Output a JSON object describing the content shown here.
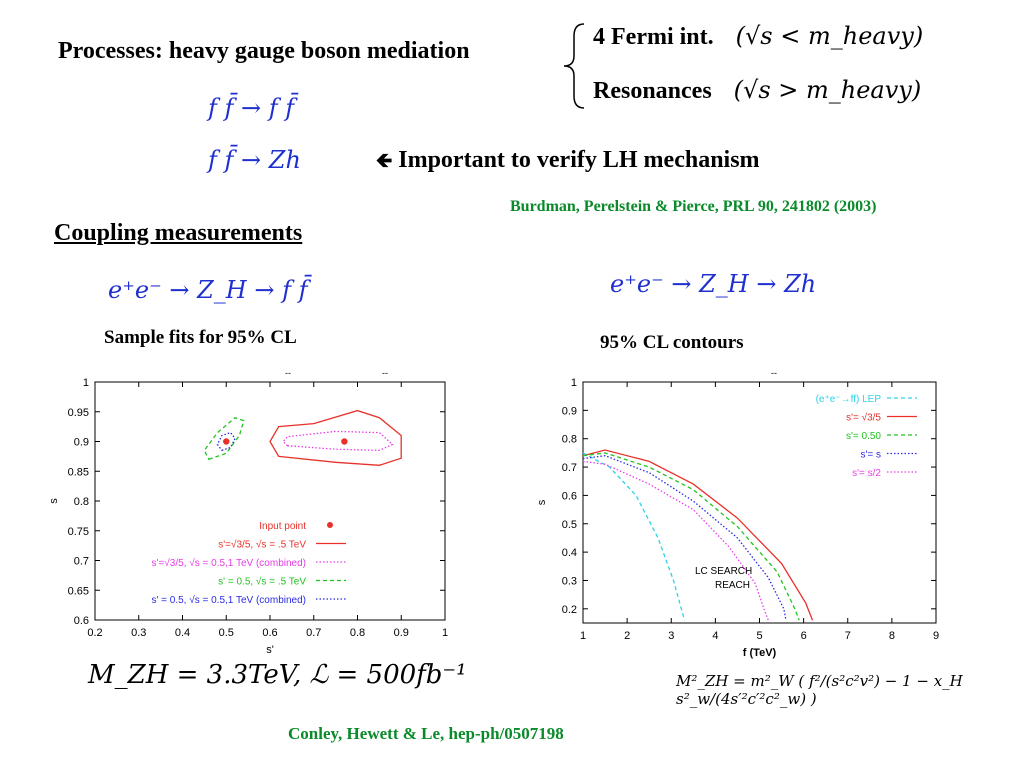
{
  "header": {
    "processes_label": "Processes: heavy gauge boson mediation",
    "bracket_items": [
      {
        "label": "4 Fermi int.",
        "math": "(√s < m_heavy)"
      },
      {
        "label": "Resonances",
        "math": "(√s > m_heavy)"
      }
    ],
    "process_eq1": "f f̄ → f f̄",
    "process_eq2": "f f̄ → Zh",
    "important_arrow": "🡸",
    "important_text": "Important to verify LH mechanism",
    "ref1": "Burdman, Perelstein & Pierce, PRL 90, 241802 (2003)"
  },
  "section": {
    "title": "Coupling measurements",
    "left_eq": "e⁺e⁻ → Z_H → f f̄",
    "right_eq": "e⁺e⁻ → Z_H → Zh",
    "left_caption": "Sample fits for 95% CL",
    "right_caption": "95% CL contours"
  },
  "formulas": {
    "mass_lumi": "M_ZH = 3.3TeV,  ℒ = 500fb⁻¹",
    "mass_formula": "M²_ZH = m²_W ( f²/(s²c²v²) − 1 − x_H s²_w/(4s′²c′²c²_w) )"
  },
  "footer_ref": "Conley, Hewett & Le, hep-ph/0507198",
  "colors": {
    "red": "#e8312a",
    "magenta": "#e83de8",
    "green": "#22c322",
    "blue": "#2a2ae8",
    "cyan": "#2ad2e8",
    "ref_green": "#0a8a2a",
    "eq_blue": "#1f2fd0"
  },
  "chart_data": [
    {
      "type": "scatter",
      "xlabel": "s'",
      "ylabel": "s",
      "xlim": [
        0.2,
        1
      ],
      "ylim": [
        0.6,
        1
      ],
      "xticks": [
        "0.2",
        "0.3",
        "0.4",
        "0.5",
        "0.6",
        "0.7",
        "0.8",
        "0.9",
        "1"
      ],
      "yticks": [
        "0.6",
        "0.65",
        "0.7",
        "0.75",
        "0.8",
        "0.85",
        "0.9",
        "0.95",
        "1"
      ],
      "top_marks": [
        "--",
        "--"
      ],
      "input_points": [
        {
          "x": 0.5,
          "y": 0.9
        },
        {
          "x": 0.77,
          "y": 0.9
        }
      ],
      "legend": [
        {
          "name": "Input point",
          "color": "#e8312a",
          "style": "point"
        },
        {
          "name": "s'=√3/5, √s = .5 TeV",
          "color": "#e8312a",
          "style": "solid"
        },
        {
          "name": "s'=√3/5, √s = 0.5,1 TeV (combined)",
          "color": "#e83de8",
          "style": "dotted"
        },
        {
          "name": "s' = 0.5, √s = .5 TeV",
          "color": "#22c322",
          "style": "dashed"
        },
        {
          "name": "s' = 0.5, √s = 0.5,1 TeV (combined)",
          "color": "#2a2ae8",
          "style": "dotted"
        }
      ],
      "series": [
        {
          "color": "#e8312a",
          "style": "solid",
          "points": [
            [
              0.62,
              0.875
            ],
            [
              0.75,
              0.865
            ],
            [
              0.85,
              0.86
            ],
            [
              0.9,
              0.872
            ],
            [
              0.9,
              0.91
            ],
            [
              0.85,
              0.94
            ],
            [
              0.8,
              0.952
            ],
            [
              0.7,
              0.93
            ],
            [
              0.62,
              0.925
            ],
            [
              0.6,
              0.9
            ]
          ]
        },
        {
          "color": "#e83de8",
          "style": "dotted",
          "points": [
            [
              0.64,
              0.893
            ],
            [
              0.75,
              0.887
            ],
            [
              0.85,
              0.885
            ],
            [
              0.88,
              0.895
            ],
            [
              0.85,
              0.915
            ],
            [
              0.75,
              0.917
            ],
            [
              0.64,
              0.908
            ],
            [
              0.63,
              0.9
            ]
          ]
        },
        {
          "color": "#22c322",
          "style": "dashed",
          "points": [
            [
              0.46,
              0.87
            ],
            [
              0.5,
              0.88
            ],
            [
              0.53,
              0.91
            ],
            [
              0.54,
              0.935
            ],
            [
              0.52,
              0.94
            ],
            [
              0.48,
              0.915
            ],
            [
              0.45,
              0.885
            ]
          ]
        },
        {
          "color": "#2a2ae8",
          "style": "dotted",
          "points": [
            [
              0.49,
              0.885
            ],
            [
              0.51,
              0.89
            ],
            [
              0.52,
              0.905
            ],
            [
              0.51,
              0.915
            ],
            [
              0.49,
              0.91
            ],
            [
              0.48,
              0.895
            ]
          ]
        }
      ]
    },
    {
      "type": "line",
      "xlabel": "f (TeV)",
      "ylabel": "s",
      "xlim": [
        1,
        9
      ],
      "ylim": [
        0.15,
        1
      ],
      "xticks": [
        "1",
        "2",
        "3",
        "4",
        "5",
        "6",
        "7",
        "8",
        "9"
      ],
      "yticks": [
        "0.2",
        "0.3",
        "0.4",
        "0.5",
        "0.6",
        "0.7",
        "0.8",
        "0.9",
        "1"
      ],
      "top_marks": [
        "--"
      ],
      "annotation": [
        "LC SEARCH",
        "REACH"
      ],
      "legend": [
        {
          "name": "(e⁺e⁻→ff) LEP",
          "color": "#2ad2e8",
          "style": "dashed"
        },
        {
          "name": "s'= √3/5",
          "color": "#e8312a",
          "style": "solid"
        },
        {
          "name": "s'= 0.50",
          "color": "#22c322",
          "style": "dashed"
        },
        {
          "name": "s'= s",
          "color": "#2a2ae8",
          "style": "dotted"
        },
        {
          "name": "s'= s/2",
          "color": "#e83de8",
          "style": "dotted"
        }
      ],
      "series": [
        {
          "name": "(e⁺e⁻→ff) LEP",
          "color": "#2ad2e8",
          "style": "dashed",
          "points": [
            [
              1,
              0.75
            ],
            [
              1.6,
              0.7
            ],
            [
              2.2,
              0.6
            ],
            [
              2.7,
              0.45
            ],
            [
              3.05,
              0.3
            ],
            [
              3.3,
              0.16
            ]
          ]
        },
        {
          "name": "s'= √3/5",
          "color": "#e8312a",
          "style": "solid",
          "points": [
            [
              1,
              0.74
            ],
            [
              1.5,
              0.76
            ],
            [
              2.5,
              0.72
            ],
            [
              3.5,
              0.64
            ],
            [
              4.5,
              0.52
            ],
            [
              5.5,
              0.36
            ],
            [
              6.05,
              0.22
            ],
            [
              6.2,
              0.16
            ]
          ]
        },
        {
          "name": "s'= 0.50",
          "color": "#22c322",
          "style": "dashed",
          "points": [
            [
              1,
              0.74
            ],
            [
              1.5,
              0.75
            ],
            [
              2.5,
              0.7
            ],
            [
              3.5,
              0.62
            ],
            [
              4.5,
              0.49
            ],
            [
              5.4,
              0.33
            ],
            [
              5.8,
              0.2
            ],
            [
              5.9,
              0.16
            ]
          ]
        },
        {
          "name": "s'= s",
          "color": "#2a2ae8",
          "style": "dotted",
          "points": [
            [
              1,
              0.73
            ],
            [
              1.5,
              0.74
            ],
            [
              2.5,
              0.68
            ],
            [
              3.5,
              0.58
            ],
            [
              4.5,
              0.45
            ],
            [
              5.2,
              0.31
            ],
            [
              5.55,
              0.2
            ],
            [
              5.6,
              0.16
            ]
          ]
        },
        {
          "name": "s'= s/2",
          "color": "#e83de8",
          "style": "dotted",
          "points": [
            [
              1,
              0.72
            ],
            [
              1.5,
              0.71
            ],
            [
              2.5,
              0.64
            ],
            [
              3.5,
              0.55
            ],
            [
              4.3,
              0.42
            ],
            [
              4.9,
              0.29
            ],
            [
              5.1,
              0.2
            ],
            [
              5.2,
              0.16
            ]
          ]
        }
      ]
    }
  ]
}
